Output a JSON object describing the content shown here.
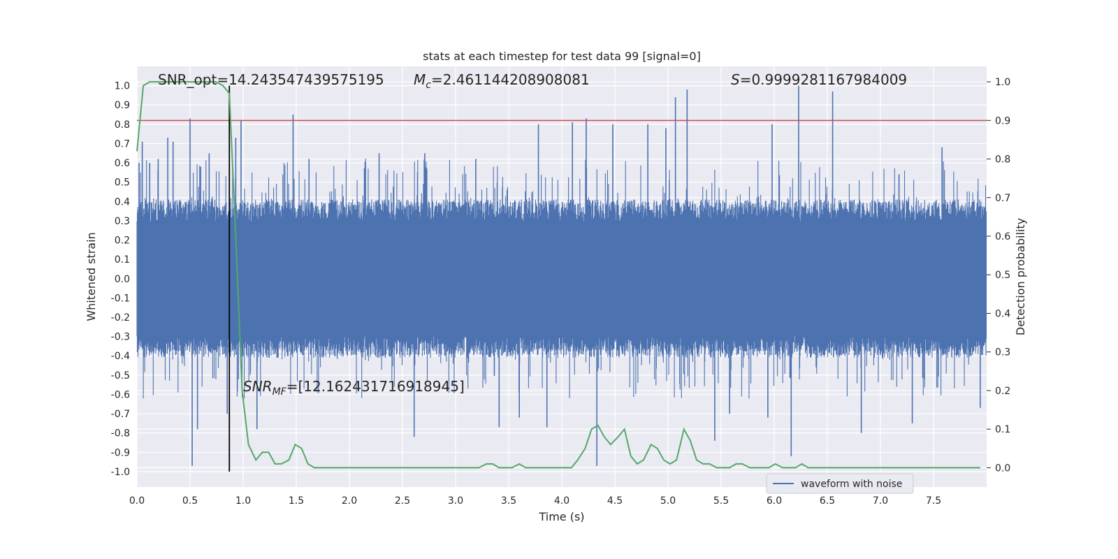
{
  "chart_data": {
    "type": "line",
    "title": "stats at each timestep for test data 99 [signal=0]",
    "xlabel": "Time (s)",
    "ylabel": "Whitened strain",
    "y2label": "Detection probability",
    "xlim": [
      0.0,
      8.0
    ],
    "ylim": [
      -1.08,
      1.1
    ],
    "y2lim": [
      -0.05,
      1.04
    ],
    "x_ticks": [
      "0.0",
      "0.5",
      "1.0",
      "1.5",
      "2.0",
      "2.5",
      "3.0",
      "3.5",
      "4.0",
      "4.5",
      "5.0",
      "5.5",
      "6.0",
      "6.5",
      "7.0",
      "7.5"
    ],
    "y_ticks": [
      "1.0",
      "0.9",
      "0.8",
      "0.7",
      "0.6",
      "0.5",
      "0.4",
      "0.3",
      "0.2",
      "0.1",
      "0.0",
      "-0.1",
      "-0.2",
      "-0.3",
      "-0.4",
      "-0.5",
      "-0.6",
      "-0.7",
      "-0.8",
      "-0.9",
      "-1.0"
    ],
    "y2_ticks": [
      "1.0",
      "0.9",
      "0.8",
      "0.7",
      "0.6",
      "0.5",
      "0.4",
      "0.3",
      "0.2",
      "0.1",
      "0.0"
    ],
    "grid": true,
    "legend": {
      "position": "bottom-right",
      "entries": [
        "waveform with noise"
      ]
    },
    "annotations": {
      "snr_opt": "SNR_opt=14.243547439575195",
      "mc_symbol": "M",
      "mc_sub": "c",
      "mc_value": "=2.461144208908081",
      "s_symbol": "S",
      "s_value": "=0.9999281167984009",
      "snr_mf_symbol": "SNR",
      "snr_mf_sub": "MF",
      "snr_mf_value": "=[12.162431716918945]"
    },
    "threshold": {
      "y2": 0.9,
      "color": "#c44e52"
    },
    "event_time": 0.87,
    "series": [
      {
        "name": "waveform with noise",
        "axis": "left",
        "color": "#4c72b0",
        "envelope": {
          "typical_amplitude": 0.38,
          "peaks": [
            [
              0.02,
              0.6
            ],
            [
              0.05,
              0.71
            ],
            [
              0.12,
              0.6
            ],
            [
              0.2,
              0.62
            ],
            [
              0.29,
              0.73
            ],
            [
              0.34,
              0.71
            ],
            [
              0.5,
              0.83
            ],
            [
              0.52,
              -0.97
            ],
            [
              0.57,
              -0.78
            ],
            [
              0.6,
              0.58
            ],
            [
              0.68,
              0.65
            ],
            [
              0.85,
              -0.7
            ],
            [
              0.93,
              0.73
            ],
            [
              0.98,
              0.82
            ],
            [
              1.13,
              -0.78
            ],
            [
              1.47,
              0.85
            ],
            [
              1.62,
              0.62
            ],
            [
              2.28,
              0.65
            ],
            [
              2.61,
              -0.82
            ],
            [
              2.71,
              0.65
            ],
            [
              3.19,
              0.62
            ],
            [
              3.41,
              -0.77
            ],
            [
              3.6,
              -0.72
            ],
            [
              3.78,
              0.8
            ],
            [
              3.86,
              -0.77
            ],
            [
              4.1,
              0.81
            ],
            [
              4.23,
              0.83
            ],
            [
              4.33,
              -0.97
            ],
            [
              4.48,
              0.8
            ],
            [
              4.81,
              0.8
            ],
            [
              4.98,
              0.78
            ],
            [
              5.07,
              0.94
            ],
            [
              5.18,
              0.98
            ],
            [
              5.44,
              -0.84
            ],
            [
              5.58,
              -0.7
            ],
            [
              5.94,
              -0.72
            ],
            [
              5.98,
              0.8
            ],
            [
              6.16,
              -0.92
            ],
            [
              6.23,
              1.0
            ],
            [
              6.55,
              0.97
            ],
            [
              6.82,
              -0.8
            ],
            [
              7.3,
              -0.75
            ],
            [
              7.58,
              0.68
            ],
            [
              7.94,
              -0.67
            ]
          ]
        }
      },
      {
        "name": "",
        "axis": "right",
        "color": "#55a868",
        "x": [
          0.0,
          0.06,
          0.12,
          0.18,
          0.25,
          0.31,
          0.37,
          0.43,
          0.5,
          0.56,
          0.62,
          0.68,
          0.74,
          0.81,
          0.87,
          0.93,
          0.99,
          1.05,
          1.12,
          1.18,
          1.24,
          1.3,
          1.36,
          1.43,
          1.49,
          1.55,
          1.61,
          1.67,
          1.74,
          1.8,
          1.86,
          1.92,
          1.98,
          2.05,
          2.11,
          2.17,
          2.23,
          2.29,
          2.36,
          2.42,
          2.48,
          2.54,
          2.6,
          2.67,
          2.73,
          2.79,
          2.85,
          2.91,
          2.98,
          3.04,
          3.1,
          3.16,
          3.22,
          3.29,
          3.35,
          3.41,
          3.47,
          3.53,
          3.6,
          3.66,
          3.72,
          3.78,
          3.84,
          3.91,
          3.97,
          4.03,
          4.09,
          4.15,
          4.22,
          4.28,
          4.34,
          4.4,
          4.46,
          4.53,
          4.59,
          4.65,
          4.71,
          4.77,
          4.84,
          4.9,
          4.96,
          5.02,
          5.08,
          5.15,
          5.21,
          5.27,
          5.33,
          5.39,
          5.46,
          5.52,
          5.58,
          5.64,
          5.7,
          5.77,
          5.83,
          5.89,
          5.95,
          6.01,
          6.08,
          6.14,
          6.2,
          6.26,
          6.32,
          6.39,
          6.45,
          6.51,
          6.57,
          6.63,
          6.7,
          6.76,
          6.82,
          6.88,
          6.94,
          7.01,
          7.07,
          7.13,
          7.19,
          7.25,
          7.32,
          7.38,
          7.44,
          7.5,
          7.56,
          7.63,
          7.69,
          7.75,
          7.81,
          7.87,
          7.94
        ],
        "values": [
          0.82,
          0.99,
          1.0,
          1.0,
          1.0,
          1.0,
          1.0,
          1.0,
          1.0,
          1.0,
          1.0,
          1.0,
          1.0,
          0.99,
          0.97,
          0.6,
          0.2,
          0.06,
          0.02,
          0.04,
          0.04,
          0.01,
          0.01,
          0.02,
          0.06,
          0.05,
          0.01,
          0.0,
          0.0,
          0.0,
          0.0,
          0.0,
          0.0,
          0.0,
          0.0,
          0.0,
          0.0,
          0.0,
          0.0,
          0.0,
          0.0,
          0.0,
          0.0,
          0.0,
          0.0,
          0.0,
          0.0,
          0.0,
          0.0,
          0.0,
          0.0,
          0.0,
          0.0,
          0.01,
          0.01,
          0.0,
          0.0,
          0.0,
          0.01,
          0.0,
          0.0,
          0.0,
          0.0,
          0.0,
          0.0,
          0.0,
          0.0,
          0.02,
          0.05,
          0.1,
          0.11,
          0.08,
          0.06,
          0.08,
          0.1,
          0.03,
          0.01,
          0.02,
          0.06,
          0.05,
          0.02,
          0.01,
          0.02,
          0.1,
          0.07,
          0.02,
          0.01,
          0.01,
          0.0,
          0.0,
          0.0,
          0.01,
          0.01,
          0.0,
          0.0,
          0.0,
          0.0,
          0.01,
          0.0,
          0.0,
          0.0,
          0.01,
          0.0,
          0.0,
          0.0,
          0.0,
          0.0,
          0.0,
          0.0,
          0.0,
          0.0,
          0.0,
          0.0,
          0.0,
          0.0,
          0.0,
          0.0,
          0.0,
          0.0,
          0.0,
          0.0,
          0.0,
          0.0,
          0.0,
          0.0,
          0.0,
          0.0,
          0.0,
          0.0
        ]
      }
    ]
  }
}
